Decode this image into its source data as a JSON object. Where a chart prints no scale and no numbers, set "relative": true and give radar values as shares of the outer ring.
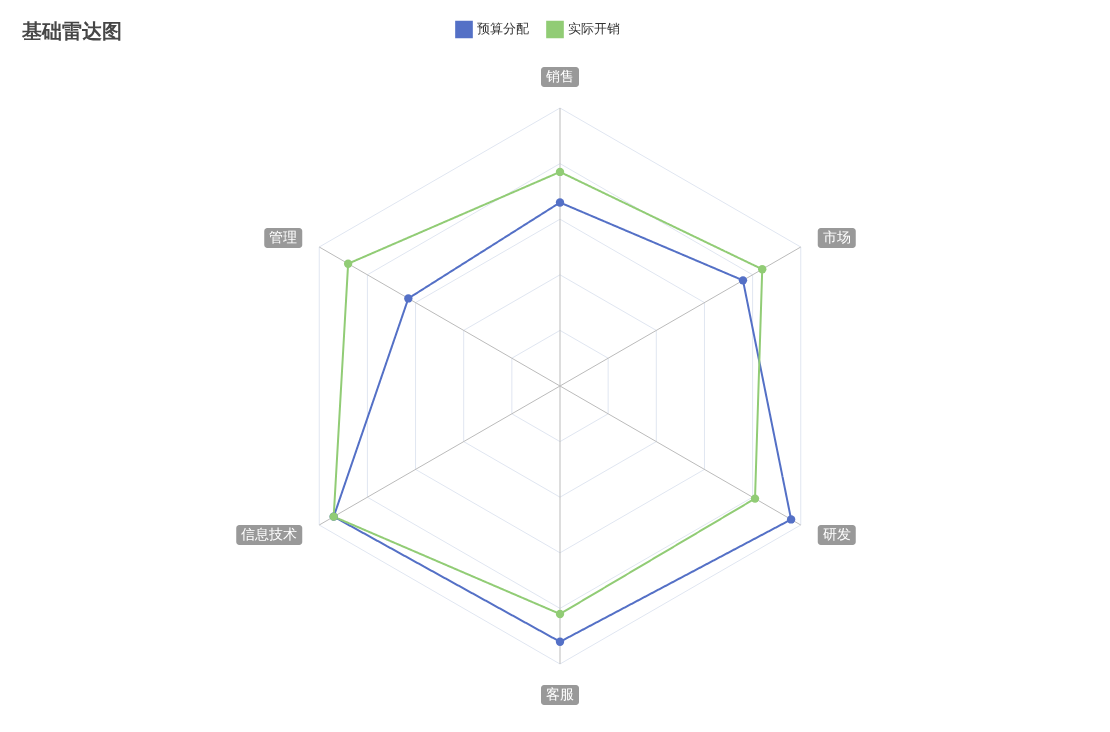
{
  "chart_data": {
    "type": "radar",
    "title": "基础雷达图",
    "relative": true,
    "legend": "top",
    "marker": "circle",
    "line_style": "solid",
    "categories": [
      "销售",
      "市场",
      "研发",
      "客服",
      "信息技术",
      "管理"
    ],
    "series": [
      {
        "name": "预算分配",
        "color": "#5470c6",
        "values": [
          0.66,
          0.76,
          0.96,
          0.92,
          0.94,
          0.63
        ]
      },
      {
        "name": "实际开销",
        "color": "#91cc75",
        "values": [
          0.77,
          0.84,
          0.81,
          0.82,
          0.94,
          0.88
        ]
      }
    ]
  }
}
